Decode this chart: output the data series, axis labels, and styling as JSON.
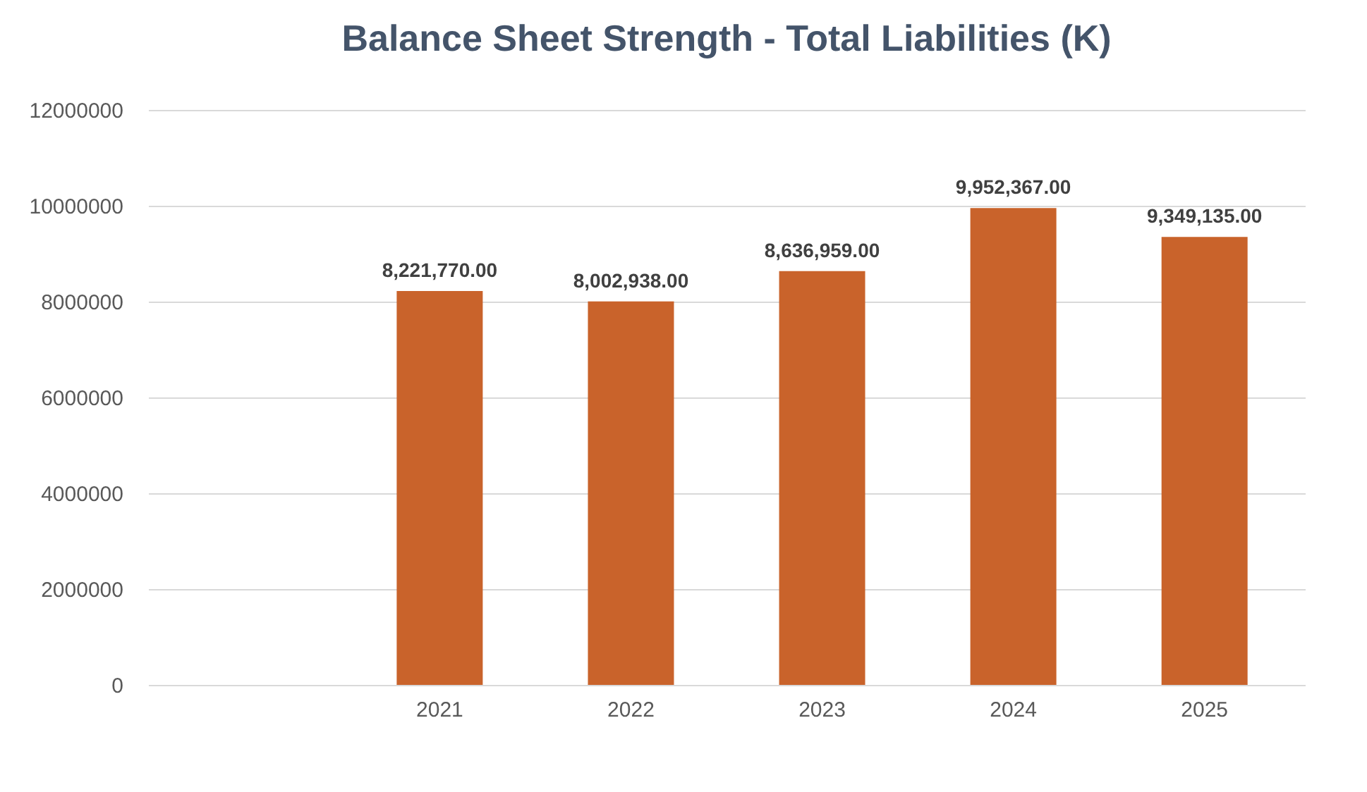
{
  "chart_data": {
    "type": "bar",
    "title": "Balance Sheet Strength - Total Liabilities (K)",
    "categories": [
      null,
      "2021",
      "2022",
      "2023",
      "2024",
      "2025"
    ],
    "series": [
      {
        "color": "#c9632b",
        "values": [
          null,
          8221770,
          8002938,
          8636959,
          9952367,
          9349135
        ],
        "value_labels": [
          null,
          "8,221,770.00",
          "8,002,938.00",
          "8,636,959.00",
          "9,952,367.00",
          "9,349,135.00"
        ]
      }
    ],
    "ylim": [
      0,
      12000000
    ],
    "yticks": [
      0,
      2000000,
      4000000,
      6000000,
      8000000,
      10000000,
      12000000
    ],
    "grid": "y",
    "legend": false
  }
}
